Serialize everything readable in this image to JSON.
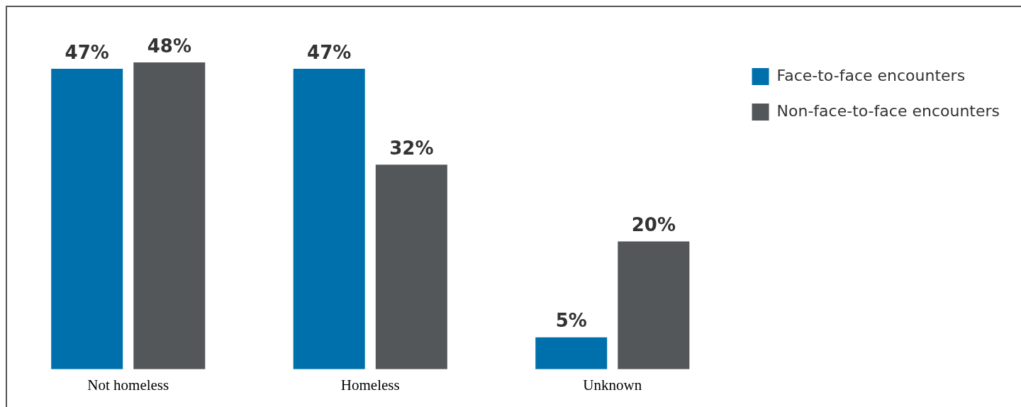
{
  "chart_data": {
    "type": "bar",
    "categories": [
      "Not homeless",
      "Homeless",
      "Unknown"
    ],
    "series": [
      {
        "name": "Face-to-face encounters",
        "color": "#0070ac",
        "values": [
          47,
          47,
          5
        ],
        "value_labels": [
          "47%",
          "47%",
          "5%"
        ]
      },
      {
        "name": "Non-face-to-face encounters",
        "color": "#53575a",
        "values": [
          48,
          32,
          20
        ],
        "value_labels": [
          "48%",
          "32%",
          "20%"
        ]
      }
    ],
    "legend": "top right",
    "grid": false
  }
}
